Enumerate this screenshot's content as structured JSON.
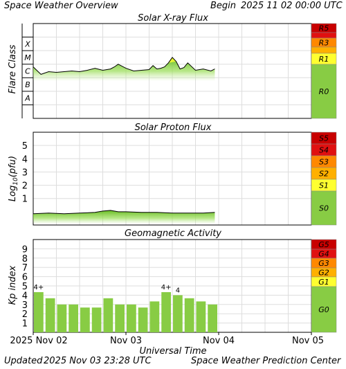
{
  "header": {
    "title": "Space Weather Overview",
    "begin_label": "Begin",
    "begin_date": "2025 11 02 00:00 UTC"
  },
  "footer": {
    "updated_label": "Updated",
    "updated_date": "2025 Nov 03 23:28 UTC",
    "credit": "Space Weather Prediction Center"
  },
  "chart_data": [
    {
      "type": "area",
      "title": "Solar X-ray Flux",
      "ylabel": "Flare Class",
      "y_scale": "log10 (W/m²)",
      "ylim": [
        -9,
        -2
      ],
      "class_labels": [
        {
          "label": "X",
          "y": -3.5
        },
        {
          "label": "M",
          "y": -4.5
        },
        {
          "label": "C",
          "y": -5.5
        },
        {
          "label": "B",
          "y": -6.5
        },
        {
          "label": "A",
          "y": -7.5
        }
      ],
      "x_hours": [
        0,
        2,
        4,
        6,
        8,
        10,
        12,
        14,
        16,
        18,
        20,
        21,
        22,
        24,
        26,
        28,
        30,
        31,
        32,
        33,
        34,
        35,
        36,
        37,
        38,
        39,
        40,
        42,
        44,
        46,
        47
      ],
      "values": [
        -5.2,
        -5.75,
        -5.55,
        -5.6,
        -5.55,
        -5.5,
        -5.55,
        -5.45,
        -5.3,
        -5.45,
        -5.35,
        -5.2,
        -5.0,
        -5.3,
        -5.5,
        -5.45,
        -5.4,
        -5.1,
        -5.35,
        -5.3,
        -5.2,
        -4.9,
        -4.5,
        -4.8,
        -5.35,
        -5.25,
        -4.9,
        -5.45,
        -5.35,
        -5.5,
        -5.35
      ],
      "scale_labels": [
        "R5",
        "R3",
        "R1",
        "R0"
      ],
      "grid": true
    },
    {
      "type": "area",
      "title": "Solar Proton Flux",
      "ylabel": "Log10(pfu)",
      "ylim": [
        -1,
        6
      ],
      "y_ticks": [
        1,
        2,
        3,
        4,
        5
      ],
      "x_hours": [
        0,
        4,
        8,
        12,
        16,
        18,
        20,
        22,
        24,
        28,
        32,
        36,
        40,
        44,
        47
      ],
      "values": [
        -0.15,
        -0.1,
        -0.15,
        -0.1,
        -0.05,
        0.05,
        0.1,
        0.0,
        0.0,
        -0.05,
        -0.05,
        -0.1,
        -0.1,
        -0.1,
        -0.05
      ],
      "scale_labels": [
        "S5",
        "S4",
        "S3",
        "S2",
        "S1",
        "S0"
      ],
      "grid": true
    },
    {
      "type": "bar",
      "title": "Geomagnetic Activity",
      "ylabel": "Kp index",
      "xlabel": "Universal Time",
      "ylim": [
        0,
        10
      ],
      "y_ticks": [
        1,
        2,
        3,
        4,
        5,
        6,
        7,
        8,
        9
      ],
      "bar_width_hours": 3,
      "values": [
        4.33,
        3.67,
        3.0,
        3.0,
        2.67,
        2.67,
        3.67,
        3.0,
        3.0,
        2.67,
        3.33,
        4.33,
        4.0,
        3.67,
        3.33,
        3.0
      ],
      "bar_labels": [
        {
          "index": 0,
          "label": "4+"
        },
        {
          "index": 11,
          "label": "4+"
        },
        {
          "index": 12,
          "label": "4"
        }
      ],
      "scale_labels": [
        "G5",
        "G4",
        "G3",
        "G2",
        "G1",
        "G0"
      ],
      "x_ticks": [
        {
          "label": "2025 Nov 02",
          "hour": 0
        },
        {
          "label": "Nov 03",
          "hour": 24
        },
        {
          "label": "Nov 04",
          "hour": 48
        },
        {
          "label": "Nov 05",
          "hour": 72
        }
      ],
      "x_range_hours": [
        0,
        72
      ],
      "grid": true
    }
  ],
  "colors": {
    "red": "#e01010",
    "darkred": "#c80000",
    "orange": "#ff8800",
    "amber": "#ffb000",
    "yellow": "#ffff30",
    "green": "#88cc44",
    "bar": "#88cc44",
    "curve_line": "#000000",
    "grid": "#dddddd"
  }
}
